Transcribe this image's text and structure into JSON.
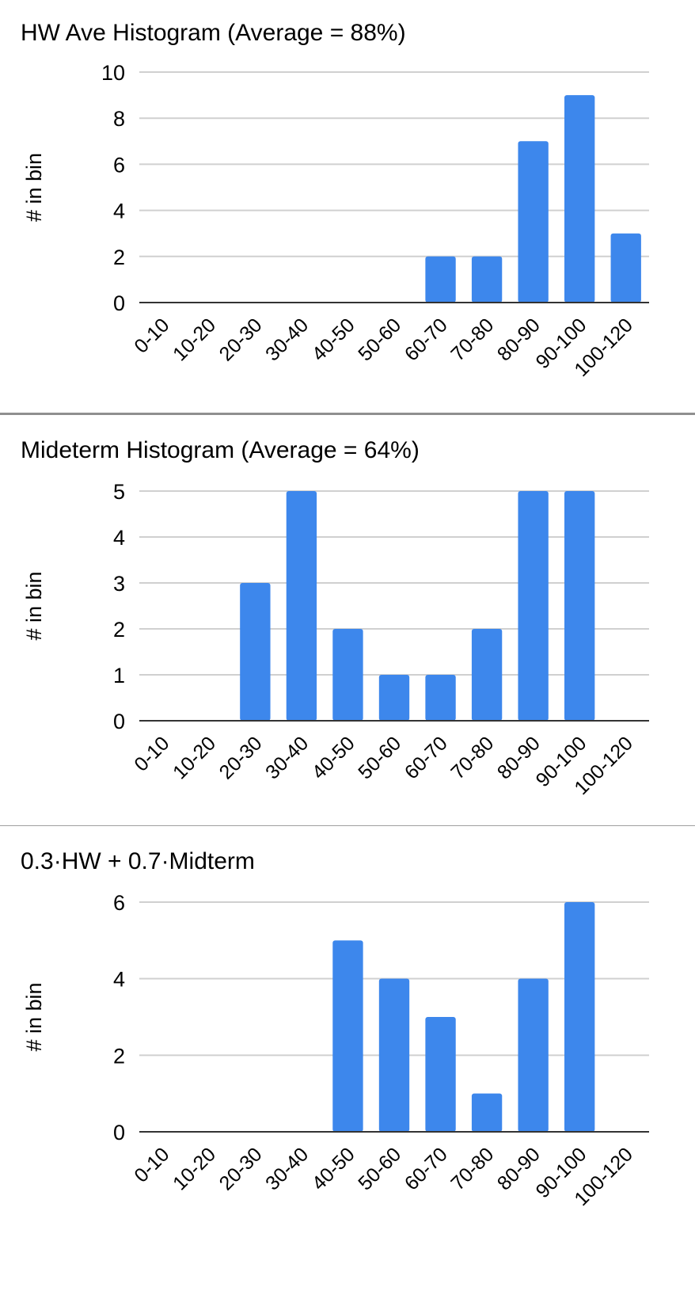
{
  "colors": {
    "bar": "#3d87ec",
    "grid": "#d0d0d0",
    "axis": "#333333"
  },
  "chart_data": [
    {
      "type": "bar",
      "title": "HW Ave Histogram (Average = 88%)",
      "ylabel": "# in bin",
      "xlabel": "",
      "categories": [
        "0-10",
        "10-20",
        "20-30",
        "30-40",
        "40-50",
        "50-60",
        "60-70",
        "70-80",
        "80-90",
        "90-100",
        "100-120"
      ],
      "values": [
        0,
        0,
        0,
        0,
        0,
        0,
        2,
        2,
        7,
        9,
        3
      ],
      "ylim": [
        0,
        10
      ],
      "yticks": [
        "0",
        "2",
        "4",
        "6",
        "8",
        "10"
      ],
      "grid": true,
      "legend": "none"
    },
    {
      "type": "bar",
      "title": "Mideterm Histogram (Average = 64%)",
      "ylabel": "# in bin",
      "xlabel": "",
      "categories": [
        "0-10",
        "10-20",
        "20-30",
        "30-40",
        "40-50",
        "50-60",
        "60-70",
        "70-80",
        "80-90",
        "90-100",
        "100-120"
      ],
      "values": [
        0,
        0,
        3,
        5,
        2,
        1,
        1,
        2,
        5,
        5,
        0
      ],
      "ylim": [
        0,
        5
      ],
      "yticks": [
        "0",
        "1",
        "2",
        "3",
        "4",
        "5"
      ],
      "grid": true,
      "legend": "none"
    },
    {
      "type": "bar",
      "title": "0.3·HW + 0.7·Midterm",
      "ylabel": "# in bin",
      "xlabel": "",
      "categories": [
        "0-10",
        "10-20",
        "20-30",
        "30-40",
        "40-50",
        "50-60",
        "60-70",
        "70-80",
        "80-90",
        "90-100",
        "100-120"
      ],
      "values": [
        0,
        0,
        0,
        0,
        5,
        4,
        3,
        1,
        4,
        6,
        0
      ],
      "ylim": [
        0,
        6
      ],
      "yticks": [
        "0",
        "2",
        "4",
        "6"
      ],
      "grid": true,
      "legend": "none"
    }
  ]
}
